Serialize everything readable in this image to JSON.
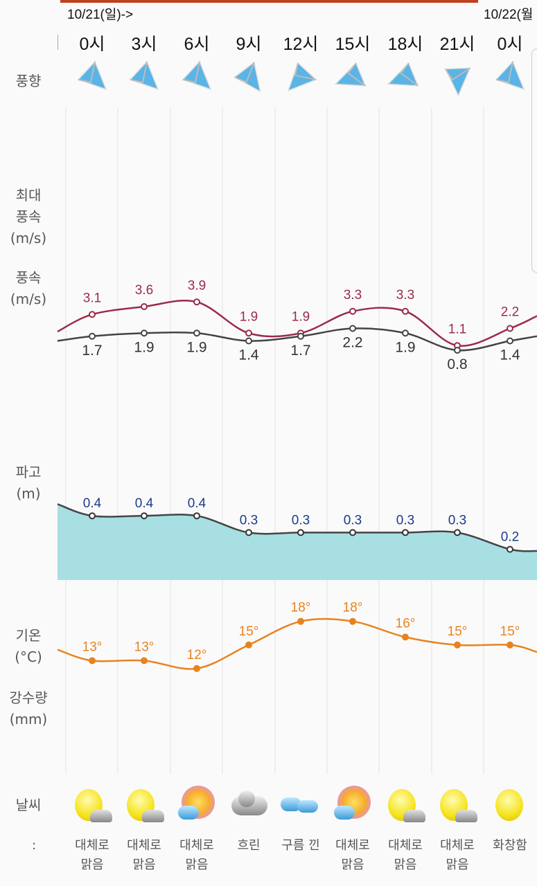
{
  "dates": [
    "10/21(일)->",
    "10/22(월"
  ],
  "hours": [
    "0시",
    "3시",
    "6시",
    "9시",
    "12시",
    "15시",
    "18시",
    "21시",
    "0시"
  ],
  "labels": {
    "wind_dir": "풍향",
    "max_wind_1": "최대",
    "max_wind_2": "풍속",
    "max_wind_unit": "(m/s)",
    "wind_1": "풍속",
    "wind_unit": "(m/s)",
    "wave_1": "파고",
    "wave_unit": "(m)",
    "temp_1": "기온",
    "temp_unit": "(°C)",
    "rain_1": "강수량",
    "rain_unit": "(mm)",
    "weather": "날씨"
  },
  "wind_direction_deg": [
    135,
    135,
    135,
    145,
    225,
    250,
    250,
    180,
    135
  ],
  "chart_data": [
    {
      "type": "line",
      "name": "최대풍속",
      "unit": "m/s",
      "color": "#9b2a48",
      "values": [
        3.1,
        3.6,
        3.9,
        1.9,
        1.9,
        3.3,
        3.3,
        1.1,
        2.2
      ],
      "edge": [
        2.0,
        3.0
      ],
      "labels": [
        "3.1",
        "3.6",
        "3.9",
        "1.9",
        "1.9",
        "3.3",
        "3.3",
        "1.1",
        "2.2"
      ]
    },
    {
      "type": "line",
      "name": "풍속",
      "unit": "m/s",
      "color": "#444444",
      "values": [
        1.7,
        1.9,
        1.9,
        1.4,
        1.7,
        2.2,
        1.9,
        0.8,
        1.4
      ],
      "edge": [
        1.4,
        1.7
      ],
      "labels": [
        "1.7",
        "1.9",
        "1.9",
        "1.4",
        "1.7",
        "2.2",
        "1.9",
        "0.8",
        "1.4"
      ]
    },
    {
      "type": "area",
      "name": "파고",
      "unit": "m",
      "color": "#a8dfe3",
      "values": [
        0.4,
        0.4,
        0.4,
        0.3,
        0.3,
        0.3,
        0.3,
        0.3,
        0.2
      ],
      "edge": [
        0.47,
        0.19
      ],
      "labels": [
        "0.4",
        "0.4",
        "0.4",
        "0.3",
        "0.3",
        "0.3",
        "0.3",
        "0.3",
        "0.2"
      ]
    },
    {
      "type": "line",
      "name": "기온",
      "unit": "°C",
      "color": "#e8821e",
      "values": [
        13,
        13,
        12,
        15,
        18,
        18,
        16,
        15,
        15
      ],
      "edge": [
        14.4,
        14.1
      ],
      "labels": [
        "13°",
        "13°",
        "12°",
        "15°",
        "18°",
        "18°",
        "16°",
        "15°",
        "15°"
      ]
    }
  ],
  "weather": [
    {
      "icon": "mostly-clear",
      "text1": "대체로",
      "text2": "맑음"
    },
    {
      "icon": "mostly-clear",
      "text1": "대체로",
      "text2": "맑음"
    },
    {
      "icon": "sun-cloud",
      "text1": "대체로",
      "text2": "맑음"
    },
    {
      "icon": "overcast",
      "text1": "흐린",
      "text2": ""
    },
    {
      "icon": "cloudy",
      "text1": "구름 낀",
      "text2": ""
    },
    {
      "icon": "sun-cloud",
      "text1": "대체로",
      "text2": "맑음"
    },
    {
      "icon": "mostly-clear",
      "text1": "대체로",
      "text2": "맑음"
    },
    {
      "icon": "mostly-clear",
      "text1": "대체로",
      "text2": "맑음"
    },
    {
      "icon": "sunny",
      "text1": "화창함",
      "text2": ""
    }
  ],
  "weather_prev_partial": ":"
}
